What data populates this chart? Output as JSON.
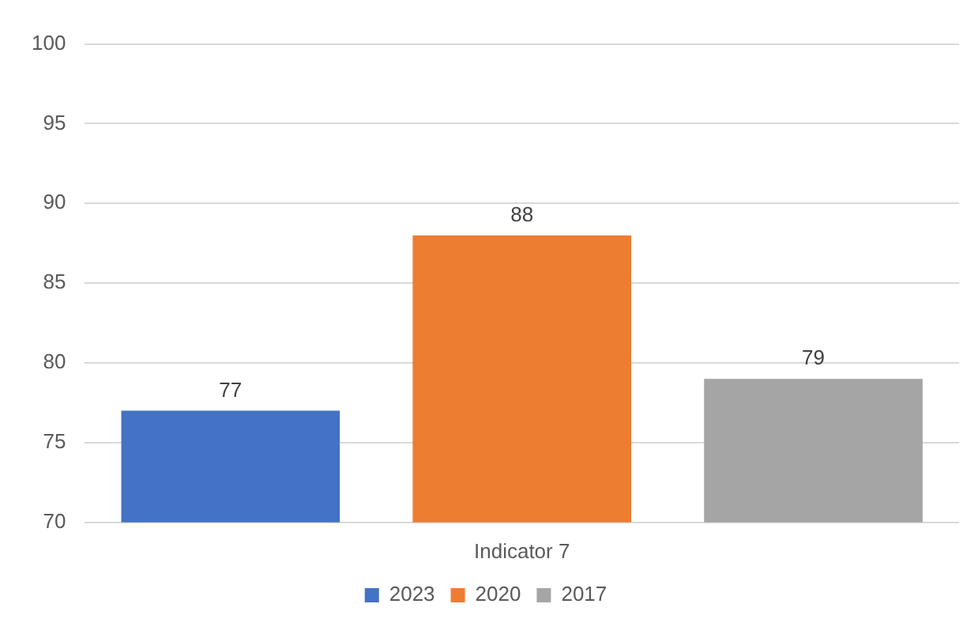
{
  "chart_data": {
    "type": "bar",
    "categories": [
      "Indicator 7"
    ],
    "series": [
      {
        "name": "2023",
        "color": "#4472c4",
        "values": [
          77
        ]
      },
      {
        "name": "2020",
        "color": "#ed7d31",
        "values": [
          88
        ]
      },
      {
        "name": "2017",
        "color": "#a5a5a5",
        "values": [
          79
        ]
      }
    ],
    "ylim": [
      70,
      100
    ],
    "yticks": [
      70,
      75,
      80,
      85,
      90,
      95,
      100
    ],
    "grid": "y",
    "legend": "bottom",
    "data_labels": true
  }
}
